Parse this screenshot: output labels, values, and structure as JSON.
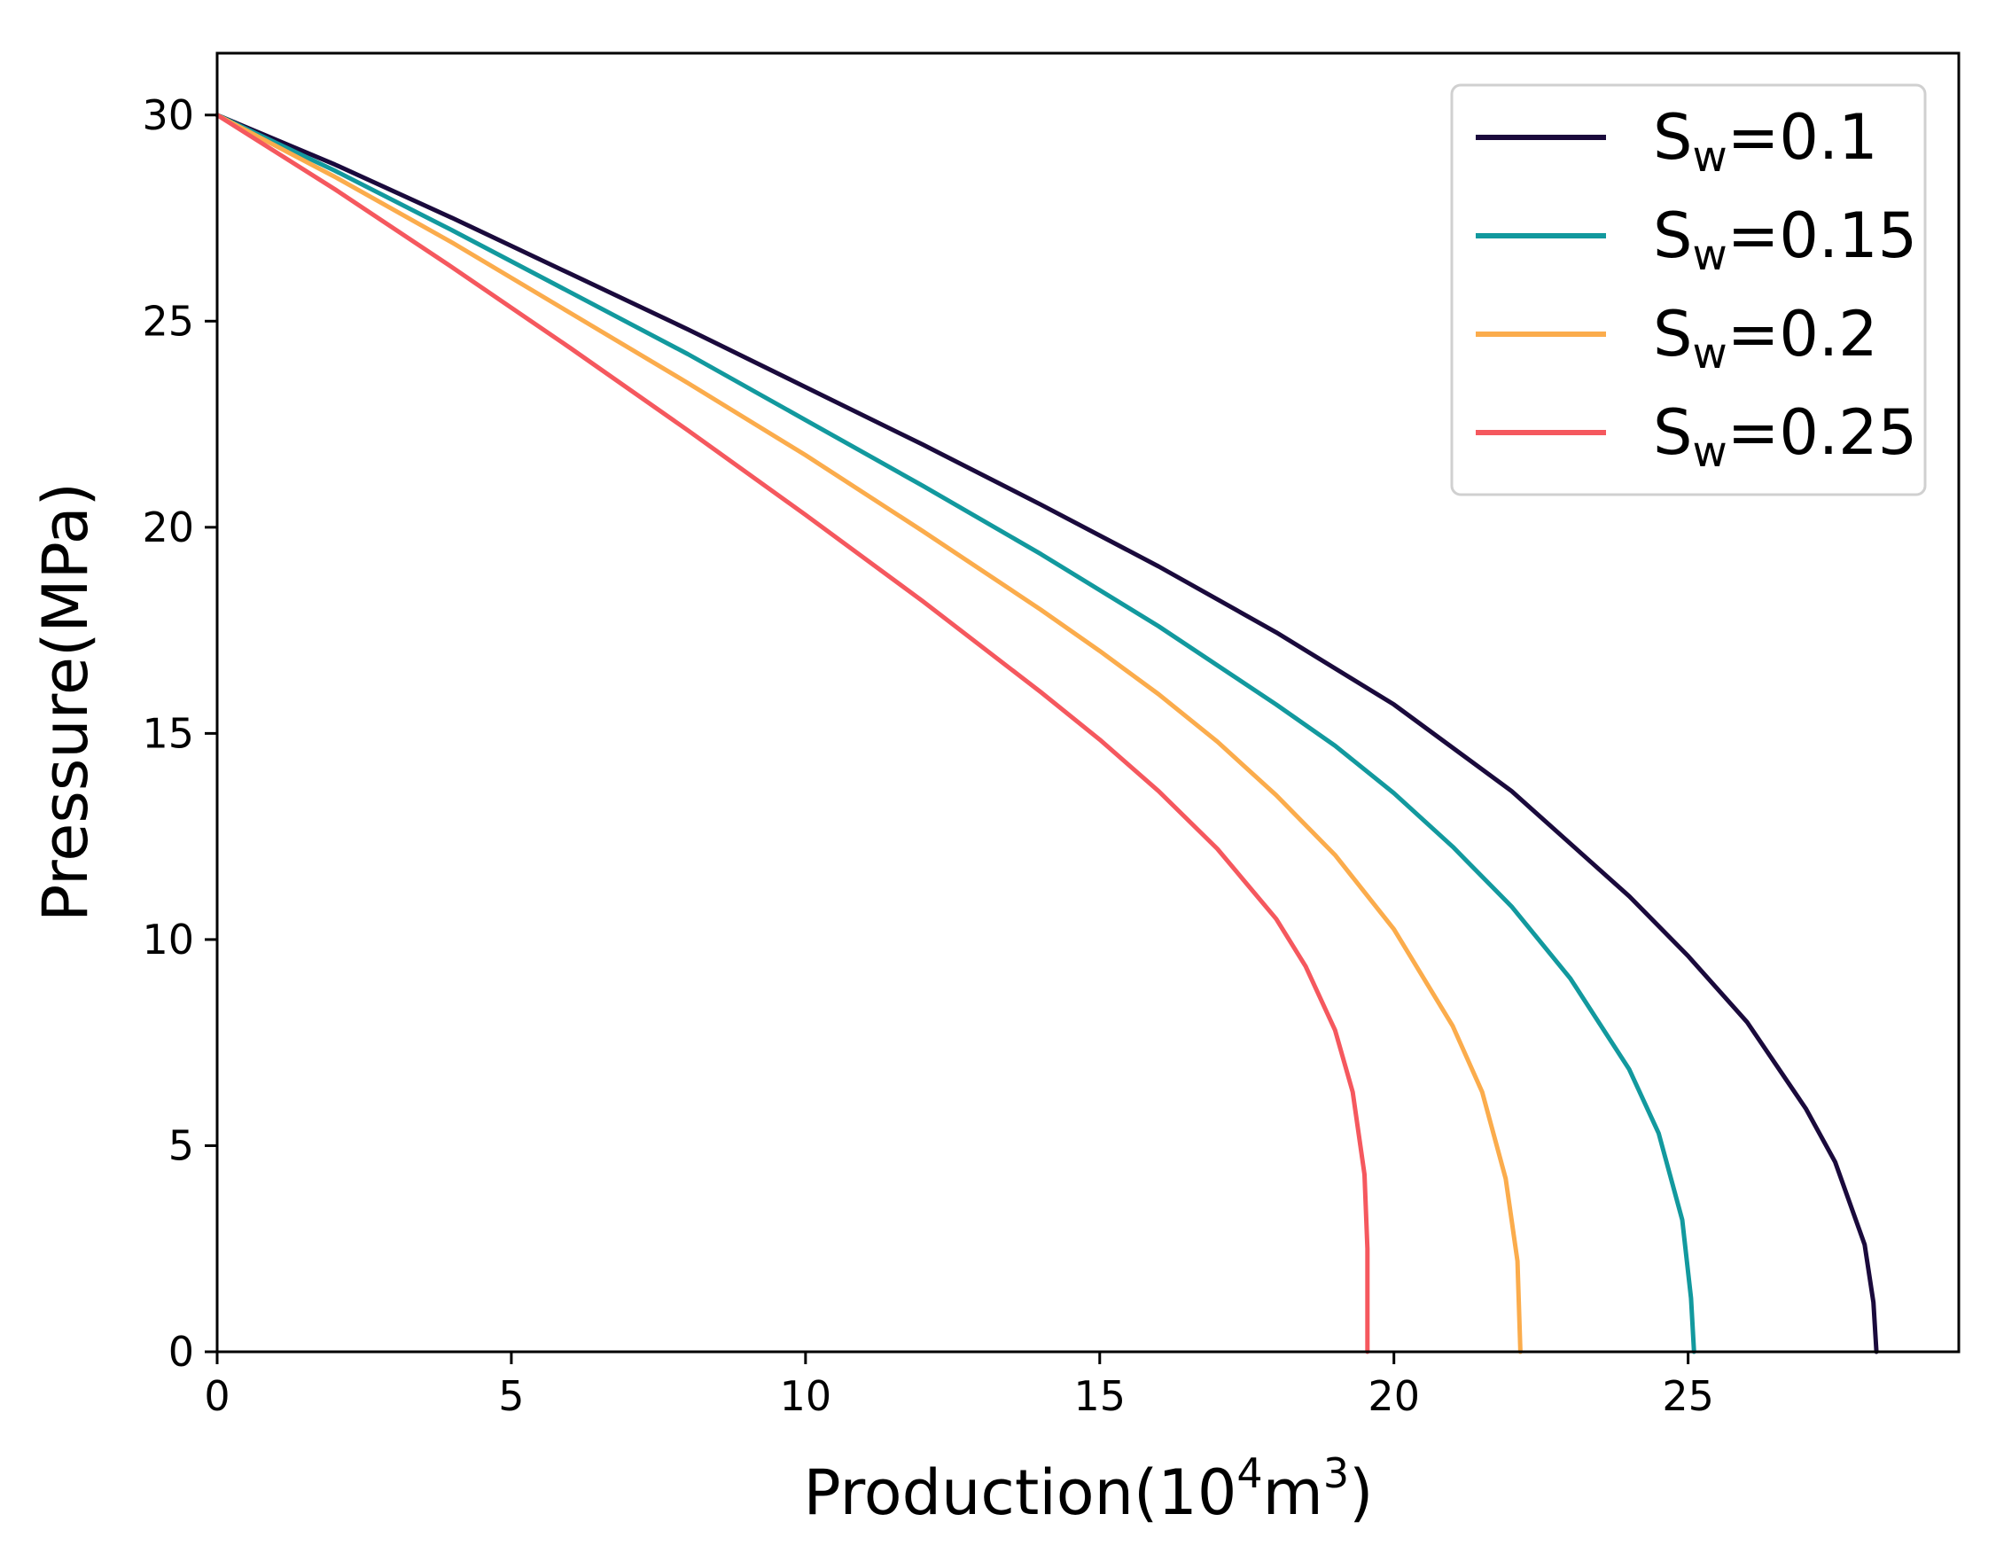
{
  "chart_data": {
    "type": "line",
    "title": "",
    "xlabel": {
      "text": "Production(10",
      "sup1": "4",
      "mid": "m",
      "sup2": "3",
      "end": ")"
    },
    "ylabel": "Pressure(MPa)",
    "xlim": [
      0,
      29.6
    ],
    "ylim": [
      0,
      31.5
    ],
    "x_ticks": [
      0,
      5,
      10,
      15,
      20,
      25
    ],
    "y_ticks": [
      0,
      5,
      10,
      15,
      20,
      25,
      30
    ],
    "grid": false,
    "legend_position": "top-right",
    "series": [
      {
        "name": {
          "base": "S",
          "sub": "w",
          "rest": "=0.1"
        },
        "color": "#1a0a3c",
        "points": [
          [
            0,
            30
          ],
          [
            2,
            28.8
          ],
          [
            4,
            27.5
          ],
          [
            6,
            26.15
          ],
          [
            8,
            24.8
          ],
          [
            10,
            23.4
          ],
          [
            12,
            22
          ],
          [
            14,
            20.55
          ],
          [
            16,
            19.05
          ],
          [
            18,
            17.45
          ],
          [
            20,
            15.7
          ],
          [
            22,
            13.6
          ],
          [
            24,
            11.05
          ],
          [
            25,
            9.6
          ],
          [
            26,
            8
          ],
          [
            27,
            5.9
          ],
          [
            27.5,
            4.6
          ],
          [
            28,
            2.6
          ],
          [
            28.15,
            1.2
          ],
          [
            28.2,
            0
          ]
        ]
      },
      {
        "name": {
          "base": "S",
          "sub": "w",
          "rest": "=0.15"
        },
        "color": "#12999e",
        "points": [
          [
            0,
            30
          ],
          [
            2,
            28.65
          ],
          [
            4,
            27.2
          ],
          [
            6,
            25.7
          ],
          [
            8,
            24.2
          ],
          [
            10,
            22.6
          ],
          [
            12,
            21
          ],
          [
            14,
            19.35
          ],
          [
            16,
            17.6
          ],
          [
            18,
            15.7
          ],
          [
            19,
            14.7
          ],
          [
            20,
            13.55
          ],
          [
            21,
            12.25
          ],
          [
            22,
            10.8
          ],
          [
            23,
            9.05
          ],
          [
            24,
            6.85
          ],
          [
            24.5,
            5.3
          ],
          [
            24.9,
            3.2
          ],
          [
            25.05,
            1.3
          ],
          [
            25.1,
            0
          ]
        ]
      },
      {
        "name": {
          "base": "S",
          "sub": "w",
          "rest": "=0.2"
        },
        "color": "#fbac4c",
        "points": [
          [
            0,
            30
          ],
          [
            2,
            28.5
          ],
          [
            4,
            26.9
          ],
          [
            6,
            25.2
          ],
          [
            8,
            23.5
          ],
          [
            10,
            21.75
          ],
          [
            12,
            19.9
          ],
          [
            14,
            18
          ],
          [
            15,
            17
          ],
          [
            16,
            15.95
          ],
          [
            17,
            14.8
          ],
          [
            18,
            13.5
          ],
          [
            19,
            12.05
          ],
          [
            20,
            10.25
          ],
          [
            21,
            7.9
          ],
          [
            21.5,
            6.3
          ],
          [
            21.9,
            4.2
          ],
          [
            22.1,
            2.2
          ],
          [
            22.15,
            0
          ]
        ]
      },
      {
        "name": {
          "base": "S",
          "sub": "w",
          "rest": "=0.25"
        },
        "color": "#f5585e",
        "points": [
          [
            0,
            30
          ],
          [
            2,
            28.2
          ],
          [
            4,
            26.3
          ],
          [
            6,
            24.35
          ],
          [
            8,
            22.35
          ],
          [
            10,
            20.3
          ],
          [
            12,
            18.2
          ],
          [
            14,
            16
          ],
          [
            15,
            14.85
          ],
          [
            16,
            13.6
          ],
          [
            17,
            12.2
          ],
          [
            18,
            10.5
          ],
          [
            18.5,
            9.35
          ],
          [
            19,
            7.8
          ],
          [
            19.3,
            6.3
          ],
          [
            19.5,
            4.3
          ],
          [
            19.55,
            2.5
          ],
          [
            19.55,
            0
          ]
        ]
      }
    ]
  }
}
